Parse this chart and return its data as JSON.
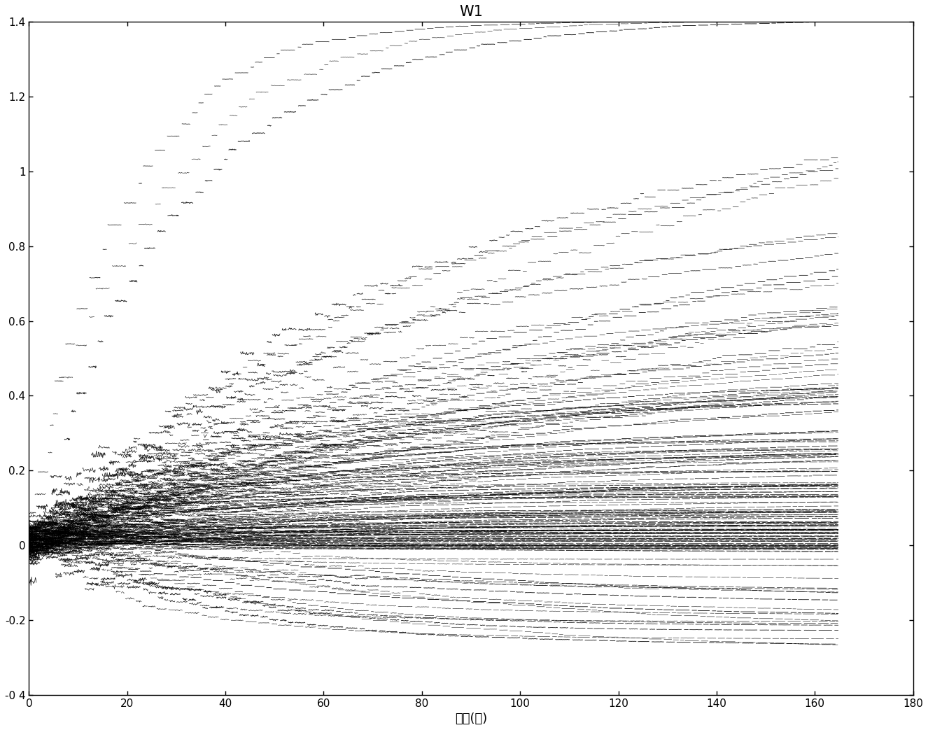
{
  "title": "W1",
  "xlabel": "时间(秒)",
  "ylabel": "",
  "xlim": [
    0,
    180
  ],
  "ylim": [
    -0.4,
    1.4
  ],
  "xticks": [
    0,
    20,
    40,
    60,
    80,
    100,
    120,
    140,
    160,
    180
  ],
  "yticks": [
    -0.4,
    -0.2,
    0,
    0.2,
    0.4,
    0.6,
    0.8,
    1,
    1.2,
    1.4
  ],
  "ytick_labels": [
    "-0 4",
    "-0.2",
    "0",
    "0.2",
    "0.4",
    "0.6",
    "0.8",
    "1",
    "1.2",
    "1.4"
  ],
  "bg_color": "#ffffff",
  "line_color": "#000000",
  "n_steps": 1650,
  "seed": 42,
  "title_fontsize": 15,
  "label_fontsize": 13,
  "tick_fontsize": 11
}
